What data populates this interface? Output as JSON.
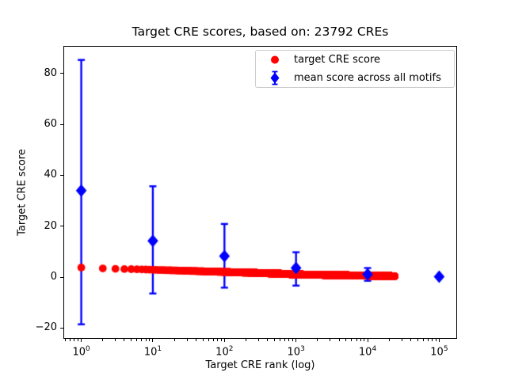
{
  "chart_data": {
    "type": "scatter",
    "title": "Target CRE scores, based on: 23792 CREs",
    "xlabel": "Target CRE rank (log)",
    "ylabel": "Target CRE score",
    "x_scale": "log",
    "grid": false,
    "legend_position": "upper right",
    "xlim": [
      0.562,
      177828
    ],
    "ylim": [
      -24.2,
      90.8
    ],
    "x_ticks": [
      {
        "value": 1,
        "label": "10^0"
      },
      {
        "value": 10,
        "label": "10^1"
      },
      {
        "value": 100,
        "label": "10^2"
      },
      {
        "value": 1000,
        "label": "10^3"
      },
      {
        "value": 10000,
        "label": "10^4"
      },
      {
        "value": 100000,
        "label": "10^5"
      }
    ],
    "y_ticks": [
      {
        "value": -20,
        "label": "−20"
      },
      {
        "value": 0,
        "label": "0"
      },
      {
        "value": 20,
        "label": "20"
      },
      {
        "value": 40,
        "label": "40"
      },
      {
        "value": 60,
        "label": "60"
      },
      {
        "value": 80,
        "label": "80"
      }
    ],
    "series": [
      {
        "name": "target CRE score",
        "marker": "circle",
        "color": "#ff0000",
        "point_count": 23792,
        "note": "dense band of one dot per CRE rank; sampled anchor points [rank, score]",
        "sampled_points": [
          [
            1,
            3.8
          ],
          [
            2,
            3.45
          ],
          [
            3,
            3.3
          ],
          [
            4,
            3.2
          ],
          [
            5,
            3.15
          ],
          [
            7,
            3.05
          ],
          [
            10,
            2.9
          ],
          [
            15,
            2.75
          ],
          [
            20,
            2.65
          ],
          [
            30,
            2.5
          ],
          [
            50,
            2.3
          ],
          [
            70,
            2.2
          ],
          [
            100,
            2.05
          ],
          [
            150,
            1.9
          ],
          [
            200,
            1.8
          ],
          [
            300,
            1.65
          ],
          [
            500,
            1.45
          ],
          [
            700,
            1.3
          ],
          [
            1000,
            1.1
          ],
          [
            1500,
            1.0
          ],
          [
            2000,
            0.95
          ],
          [
            3000,
            0.85
          ],
          [
            5000,
            0.75
          ],
          [
            7000,
            0.68
          ],
          [
            10000,
            0.6
          ],
          [
            15000,
            0.5
          ],
          [
            20000,
            0.44
          ],
          [
            23792,
            0.4
          ]
        ]
      },
      {
        "name": "mean score across all motifs",
        "marker": "diamond",
        "color": "#0000ff",
        "points": [
          {
            "x": 1,
            "y": 34.0,
            "err_plus": 51.3,
            "err_minus": 52.5
          },
          {
            "x": 10,
            "y": 14.3,
            "err_plus": 21.4,
            "err_minus": 20.7
          },
          {
            "x": 100,
            "y": 8.3,
            "err_plus": 12.6,
            "err_minus": 12.4
          },
          {
            "x": 1000,
            "y": 3.6,
            "err_plus": 6.2,
            "err_minus": 6.9
          },
          {
            "x": 10000,
            "y": 1.1,
            "err_plus": 2.5,
            "err_minus": 2.5
          },
          {
            "x": 100000,
            "y": 0.2,
            "err_plus": 0.3,
            "err_minus": 0.3
          }
        ]
      }
    ]
  },
  "legend": {
    "items": [
      {
        "label": "target CRE score",
        "color": "#ff0000"
      },
      {
        "label": "mean score across all motifs",
        "color": "#0000ff"
      }
    ]
  }
}
